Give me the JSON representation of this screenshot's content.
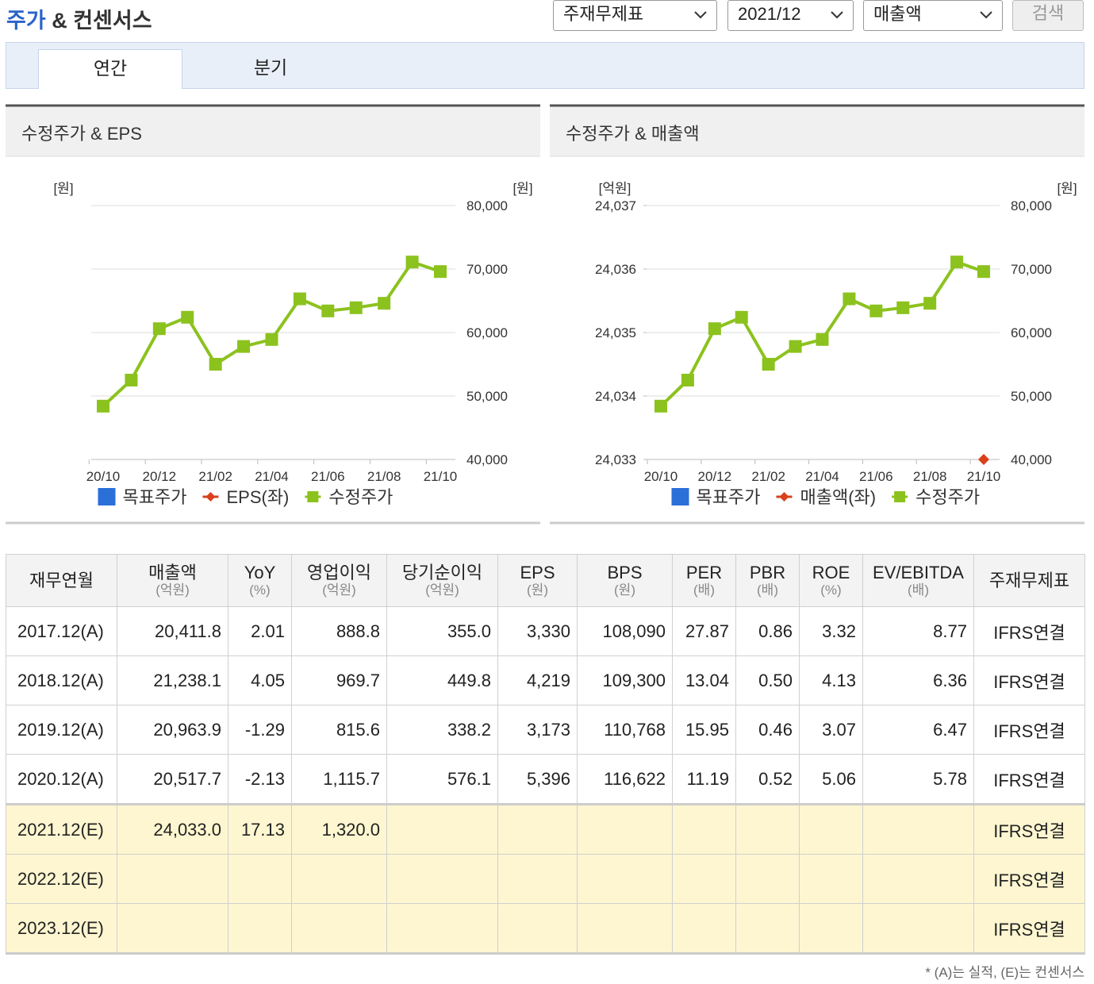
{
  "header": {
    "title_highlight": "주가",
    "title_rest": "& 컨센서스",
    "selects": [
      "주재무제표",
      "2021/12",
      "매출액"
    ],
    "button": "검색"
  },
  "tabs": [
    "연간",
    "분기"
  ],
  "chart_data": [
    {
      "type": "line",
      "title": "수정주가 & EPS",
      "y_unit": "[원]",
      "y2_unit": "[원]",
      "categories": [
        "20/10",
        null,
        "20/12",
        null,
        "21/02",
        null,
        "21/04",
        null,
        "21/06",
        null,
        "21/08",
        null,
        "21/10"
      ],
      "y2lim": [
        40000,
        80000
      ],
      "y2ticks": [
        {
          "value": 40000,
          "label": "40,000"
        },
        {
          "value": 50000,
          "label": "50,000"
        },
        {
          "value": 60000,
          "label": "60,000"
        },
        {
          "value": 70000,
          "label": "70,000"
        },
        {
          "value": 80000,
          "label": "80,000"
        }
      ],
      "grid": true,
      "series": [
        {
          "name": "목표주가",
          "color": "#2b6fd9",
          "marker": "square",
          "values": [
            null,
            null,
            null,
            null,
            null,
            null,
            null,
            null,
            null,
            null,
            null,
            null,
            null
          ]
        },
        {
          "name": "EPS(좌)",
          "color": "#d9401c",
          "marker": "diamond",
          "values": [
            null,
            null,
            null,
            null,
            null,
            null,
            null,
            null,
            null,
            null,
            null,
            null,
            null
          ]
        },
        {
          "name": "수정주가",
          "color": "#8cc21e",
          "marker": "square",
          "axis": "y2",
          "values": [
            48400,
            52500,
            60600,
            62400,
            55000,
            57800,
            58900,
            65300,
            63400,
            63900,
            64600,
            71100,
            69600
          ]
        }
      ]
    },
    {
      "type": "line",
      "title": "수정주가 & 매출액",
      "y_unit": "[억원]",
      "y2_unit": "[원]",
      "categories": [
        "20/10",
        null,
        "20/12",
        null,
        "21/02",
        null,
        "21/04",
        null,
        "21/06",
        null,
        "21/08",
        null,
        "21/10"
      ],
      "ylim": [
        24033,
        24037
      ],
      "yticks": [
        {
          "value": 24033,
          "label": "24,033"
        },
        {
          "value": 24034,
          "label": "24,034"
        },
        {
          "value": 24035,
          "label": "24,035"
        },
        {
          "value": 24036,
          "label": "24,036"
        },
        {
          "value": 24037,
          "label": "24,037"
        }
      ],
      "y2lim": [
        40000,
        80000
      ],
      "y2ticks": [
        {
          "value": 40000,
          "label": "40,000"
        },
        {
          "value": 50000,
          "label": "50,000"
        },
        {
          "value": 60000,
          "label": "60,000"
        },
        {
          "value": 70000,
          "label": "70,000"
        },
        {
          "value": 80000,
          "label": "80,000"
        }
      ],
      "grid": true,
      "series": [
        {
          "name": "목표주가",
          "color": "#2b6fd9",
          "marker": "square",
          "values": [
            null,
            null,
            null,
            null,
            null,
            null,
            null,
            null,
            null,
            null,
            null,
            null,
            null
          ]
        },
        {
          "name": "매출액(좌)",
          "color": "#d9401c",
          "marker": "diamond",
          "values": [
            null,
            null,
            null,
            null,
            null,
            null,
            null,
            null,
            null,
            null,
            null,
            null,
            24033
          ]
        },
        {
          "name": "수정주가",
          "color": "#8cc21e",
          "marker": "square",
          "axis": "y2",
          "values": [
            48400,
            52500,
            60600,
            62400,
            55000,
            57800,
            58900,
            65300,
            63400,
            63900,
            64600,
            71100,
            69600
          ]
        }
      ]
    }
  ],
  "table": {
    "headers": [
      {
        "label": "재무연월"
      },
      {
        "label": "매출액",
        "unit": "(억원)"
      },
      {
        "label": "YoY",
        "unit": "(%)"
      },
      {
        "label": "영업이익",
        "unit": "(억원)"
      },
      {
        "label": "당기순이익",
        "unit": "(억원)"
      },
      {
        "label": "EPS",
        "unit": "(원)"
      },
      {
        "label": "BPS",
        "unit": "(원)"
      },
      {
        "label": "PER",
        "unit": "(배)"
      },
      {
        "label": "PBR",
        "unit": "(배)"
      },
      {
        "label": "ROE",
        "unit": "(%)"
      },
      {
        "label": "EV/EBITDA",
        "unit": "(배)"
      },
      {
        "label": "주재무제표"
      }
    ],
    "rows": [
      [
        "2017.12(A)",
        "20,411.8",
        "2.01",
        "888.8",
        "355.0",
        "3,330",
        "108,090",
        "27.87",
        "0.86",
        "3.32",
        "8.77",
        "IFRS연결"
      ],
      [
        "2018.12(A)",
        "21,238.1",
        "4.05",
        "969.7",
        "449.8",
        "4,219",
        "109,300",
        "13.04",
        "0.50",
        "4.13",
        "6.36",
        "IFRS연결"
      ],
      [
        "2019.12(A)",
        "20,963.9",
        "-1.29",
        "815.6",
        "338.2",
        "3,173",
        "110,768",
        "15.95",
        "0.46",
        "3.07",
        "6.47",
        "IFRS연결"
      ],
      [
        "2020.12(A)",
        "20,517.7",
        "-2.13",
        "1,115.7",
        "576.1",
        "5,396",
        "116,622",
        "11.19",
        "0.52",
        "5.06",
        "5.78",
        "IFRS연결"
      ],
      [
        "2021.12(E)",
        "24,033.0",
        "17.13",
        "1,320.0",
        null,
        null,
        null,
        null,
        null,
        null,
        null,
        "IFRS연결"
      ],
      [
        "2022.12(E)",
        null,
        null,
        null,
        null,
        null,
        null,
        null,
        null,
        null,
        null,
        "IFRS연결"
      ],
      [
        "2023.12(E)",
        null,
        null,
        null,
        null,
        null,
        null,
        null,
        null,
        null,
        null,
        "IFRS연결"
      ]
    ]
  },
  "footnote": "* (A)는 실적, (E)는 컨센서스"
}
